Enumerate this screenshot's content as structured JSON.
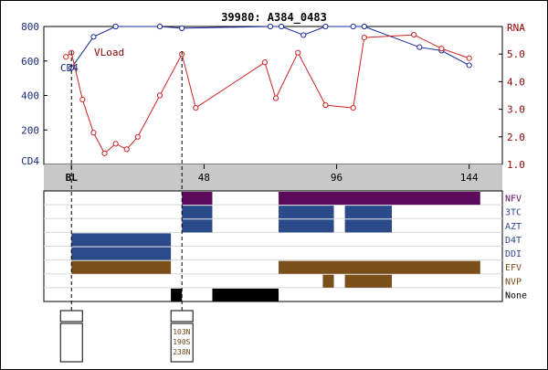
{
  "chart_data": {
    "type": "line",
    "title": "39980: A384_0483",
    "x_axis": {
      "range": [
        -10,
        156
      ],
      "ticks": [
        {
          "label": "BL",
          "value": 0
        },
        {
          "label": "48",
          "value": 48
        },
        {
          "label": "96",
          "value": 96
        },
        {
          "label": "144",
          "value": 144
        }
      ]
    },
    "left_axis": {
      "label": "CD4",
      "range": [
        0,
        800
      ],
      "ticks": [
        0,
        200,
        400,
        600,
        800
      ],
      "tick_labels": [
        "CD4",
        "200",
        "400",
        "600",
        "800"
      ]
    },
    "right_axis": {
      "label": "RNA",
      "range": [
        1.0,
        6.0
      ],
      "ticks": [
        1.0,
        2.0,
        3.0,
        4.0,
        5.0
      ],
      "tick_labels": [
        "1.0",
        "2.0",
        "3.0",
        "4.0",
        "5.0"
      ]
    },
    "series": [
      {
        "name": "CD4",
        "axis": "left",
        "color": "#1a2a9a",
        "points": [
          [
            0,
            560
          ],
          [
            8,
            740
          ],
          [
            16,
            800
          ],
          [
            32,
            800
          ],
          [
            40,
            790
          ],
          [
            72,
            800
          ],
          [
            76,
            800
          ],
          [
            84,
            750
          ],
          [
            92,
            800
          ],
          [
            102,
            800
          ],
          [
            106,
            800
          ],
          [
            126,
            680
          ],
          [
            134,
            660
          ],
          [
            144,
            575
          ]
        ]
      },
      {
        "name": "VLoad",
        "axis": "right",
        "color": "#cc2222",
        "points": [
          [
            -2,
            4.9
          ],
          [
            0,
            5.05
          ],
          [
            4,
            3.35
          ],
          [
            8,
            2.15
          ],
          [
            12,
            1.4
          ],
          [
            16,
            1.75
          ],
          [
            20,
            1.55
          ],
          [
            24,
            2.0
          ],
          [
            32,
            3.5
          ],
          [
            40,
            5.0
          ],
          [
            45,
            3.05
          ],
          [
            70,
            4.7
          ],
          [
            74,
            3.4
          ],
          [
            82,
            5.05
          ],
          [
            92,
            3.15
          ],
          [
            102,
            3.05
          ],
          [
            106,
            5.6
          ],
          [
            124,
            5.7
          ],
          [
            134,
            5.2
          ],
          [
            144,
            4.85
          ]
        ]
      }
    ],
    "dashed_markers": [
      0,
      40
    ],
    "drugs": {
      "rows": [
        "NFV",
        "3TC",
        "AZT",
        "D4T",
        "DDI",
        "EFV",
        "NVP",
        "None"
      ],
      "colors": {
        "NFV": "#5c0a5c",
        "3TC": "#2a4a8a",
        "AZT": "#2a4a8a",
        "D4T": "#2a4a8a",
        "DDI": "#2a4a8a",
        "EFV": "#7a4f1a",
        "NVP": "#7a4f1a",
        "None": "#000000"
      },
      "label_colors": {
        "NFV": "#5c0a5c",
        "3TC": "#2a4a8a",
        "AZT": "#2a4a8a",
        "D4T": "#2a4a8a",
        "DDI": "#2a4a8a",
        "EFV": "#7a4f1a",
        "NVP": "#7a4f1a",
        "None": "#000000"
      },
      "bars": [
        {
          "drug": "NFV",
          "start": 40,
          "end": 51
        },
        {
          "drug": "NFV",
          "start": 75,
          "end": 148
        },
        {
          "drug": "3TC",
          "start": 40,
          "end": 51
        },
        {
          "drug": "3TC",
          "start": 75,
          "end": 95
        },
        {
          "drug": "3TC",
          "start": 99,
          "end": 116
        },
        {
          "drug": "AZT",
          "start": 40,
          "end": 51
        },
        {
          "drug": "AZT",
          "start": 75,
          "end": 95
        },
        {
          "drug": "AZT",
          "start": 99,
          "end": 116
        },
        {
          "drug": "D4T",
          "start": 0,
          "end": 36
        },
        {
          "drug": "DDI",
          "start": 0,
          "end": 36
        },
        {
          "drug": "EFV",
          "start": 0,
          "end": 36
        },
        {
          "drug": "EFV",
          "start": 75,
          "end": 148
        },
        {
          "drug": "NVP",
          "start": 91,
          "end": 95
        },
        {
          "drug": "NVP",
          "start": 99,
          "end": 116
        },
        {
          "drug": "None",
          "start": 36,
          "end": 40
        },
        {
          "drug": "None",
          "start": 51,
          "end": 75
        }
      ]
    },
    "genotypes": [
      {
        "x": 0,
        "header": "",
        "mutations": []
      },
      {
        "x": 40,
        "header": "",
        "mutations": [
          "103N",
          "190S",
          "238N"
        ]
      }
    ]
  }
}
